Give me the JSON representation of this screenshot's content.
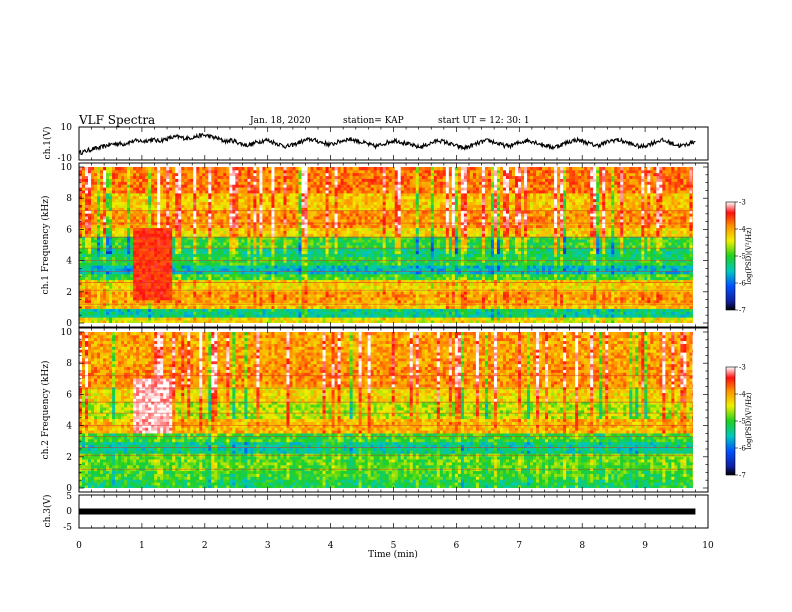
{
  "header": {
    "title": "VLF Spectra",
    "date": "Jan. 18, 2020",
    "station": "station= KAP",
    "start": "start  UT =   12: 30: 1"
  },
  "chart_data": [
    {
      "type": "line",
      "name": "ch1-waveform",
      "ylabel": "ch.1(V)",
      "ylim": [
        -10,
        10
      ],
      "yticks": [
        "10",
        "-10"
      ],
      "xlim": [
        0,
        9.8
      ],
      "values": [
        -7.0,
        -6.1,
        -4.9,
        -3.8,
        -3.4,
        -2.2,
        -1.0,
        -0.3,
        0.0,
        -0.5,
        0.8,
        1.7,
        2.1,
        1.6,
        2.5,
        2.8,
        1.9,
        2.7,
        3.6,
        4.4,
        5.1,
        4.2,
        3.8,
        4.6,
        5.3,
        6.1,
        5.9,
        4.7,
        3.9,
        2.4,
        1.6,
        2.3,
        1.1,
        -0.4,
        -1.2,
        -0.6,
        0.9,
        1.8,
        2.6,
        1.4,
        0.2,
        -1.1,
        -2.3,
        -1.5,
        -0.2,
        1.3,
        2.4,
        3.1,
        2.2,
        1.0,
        0.1,
        -0.9,
        0.4,
        1.6,
        2.8,
        3.3,
        2.5,
        1.2,
        0.3,
        -1.0,
        -2.1,
        -1.3,
        0.2,
        1.4,
        2.3,
        1.5,
        0.4,
        -0.8,
        -1.9,
        -2.8,
        -1.6,
        -0.3,
        1.2,
        2.4,
        1.3,
        0.1,
        -1.2,
        -2.4,
        -3.4,
        -2.3,
        -1.1,
        0.3,
        1.5,
        2.2,
        1.2,
        -0.1,
        -1.3,
        -2.0,
        -1.0,
        0.3,
        1.4,
        2.3,
        1.6,
        0.4,
        -0.9,
        -1.8,
        -2.9,
        -1.9,
        -0.6,
        0.8,
        1.9,
        2.7,
        1.8,
        0.6,
        -0.7,
        -1.6,
        -0.5,
        0.9,
        2.1,
        2.9,
        2.0,
        0.8,
        -0.4,
        -1.5,
        -2.5,
        -1.4,
        0.0,
        1.3,
        2.5,
        1.6,
        0.5,
        -0.8,
        -1.9,
        -1.0,
        0.4,
        1.7
      ]
    },
    {
      "type": "heatmap",
      "name": "ch1-spectrogram",
      "ylabel": "ch.1  Frequency (kHz)",
      "ylim": [
        0,
        10
      ],
      "yticks": [
        "0",
        "2",
        "4",
        "6",
        "8",
        "10"
      ],
      "xlim": [
        0,
        9.8
      ],
      "colorbar": {
        "label": "log(PSD)(V²/Hz)",
        "range": [
          -7,
          -3
        ],
        "ticks": [
          "-3",
          "-4",
          "-5",
          "-6",
          "-7"
        ]
      },
      "bands": [
        {
          "f0": 0.0,
          "f1": 0.4,
          "level": -4.4
        },
        {
          "f0": 0.4,
          "f1": 0.9,
          "level": -5.4
        },
        {
          "f0": 0.9,
          "f1": 1.3,
          "level": -4.2
        },
        {
          "f0": 1.3,
          "f1": 2.0,
          "level": -4.0
        },
        {
          "f0": 2.0,
          "f1": 2.8,
          "level": -4.3
        },
        {
          "f0": 2.8,
          "f1": 3.2,
          "level": -5.0
        },
        {
          "f0": 3.2,
          "f1": 3.7,
          "level": -5.6
        },
        {
          "f0": 3.7,
          "f1": 4.2,
          "level": -5.1
        },
        {
          "f0": 4.2,
          "f1": 4.8,
          "level": -5.3
        },
        {
          "f0": 4.8,
          "f1": 5.5,
          "level": -5.0
        },
        {
          "f0": 5.5,
          "f1": 6.2,
          "level": -4.3
        },
        {
          "f0": 6.2,
          "f1": 7.2,
          "level": -3.9
        },
        {
          "f0": 7.2,
          "f1": 8.3,
          "level": -4.2
        },
        {
          "f0": 8.3,
          "f1": 10.0,
          "level": -3.8
        }
      ],
      "burst": {
        "t0": 0.85,
        "t1": 1.5,
        "f0": 1.5,
        "f1": 6.2,
        "level": -3.5
      }
    },
    {
      "type": "heatmap",
      "name": "ch2-spectrogram",
      "ylabel": "ch.2  Frequency (kHz)",
      "ylim": [
        0,
        10
      ],
      "yticks": [
        "0",
        "2",
        "4",
        "6",
        "8",
        "10"
      ],
      "xlim": [
        0,
        9.8
      ],
      "colorbar": {
        "label": "log(PSD)(V²/Hz)",
        "range": [
          -7,
          -3
        ],
        "ticks": [
          "-3",
          "-4",
          "-5",
          "-6",
          "-7"
        ]
      },
      "bands": [
        {
          "f0": 0.0,
          "f1": 0.5,
          "level": -5.2
        },
        {
          "f0": 0.5,
          "f1": 1.2,
          "level": -5.0
        },
        {
          "f0": 1.2,
          "f1": 2.2,
          "level": -4.9
        },
        {
          "f0": 2.2,
          "f1": 3.0,
          "level": -5.4
        },
        {
          "f0": 3.0,
          "f1": 3.6,
          "level": -5.0
        },
        {
          "f0": 3.6,
          "f1": 4.5,
          "level": -4.1
        },
        {
          "f0": 4.5,
          "f1": 5.5,
          "level": -4.6
        },
        {
          "f0": 5.5,
          "f1": 6.5,
          "level": -4.3
        },
        {
          "f0": 6.5,
          "f1": 8.0,
          "level": -3.9
        },
        {
          "f0": 8.0,
          "f1": 10.0,
          "level": -4.0
        }
      ],
      "burst": {
        "t0": 0.85,
        "t1": 1.5,
        "f0": 3.5,
        "f1": 7.0,
        "level": -3.1
      }
    },
    {
      "type": "line",
      "name": "ch3-waveform",
      "ylabel": "ch.3(V)",
      "ylim": [
        -5,
        5
      ],
      "yticks": [
        "5",
        "0",
        "-5"
      ],
      "xlim": [
        0,
        9.8
      ],
      "values": [
        0,
        0
      ]
    }
  ],
  "xaxis": {
    "label": "Time (min)",
    "range": [
      0,
      10
    ],
    "ticks": [
      "0",
      "1",
      "2",
      "3",
      "4",
      "5",
      "6",
      "7",
      "8",
      "9",
      "10"
    ]
  }
}
